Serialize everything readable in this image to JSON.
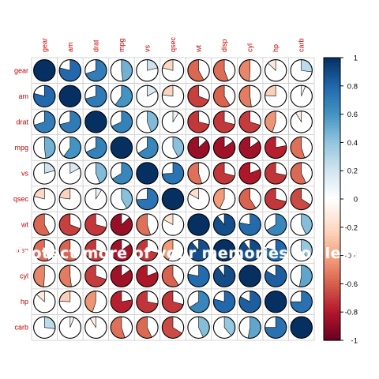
{
  "chart_data": {
    "type": "heatmap",
    "method": "pie",
    "variables": [
      "gear",
      "am",
      "drat",
      "mpg",
      "vs",
      "qsec",
      "wt",
      "disp",
      "cyl",
      "hp",
      "carb"
    ],
    "matrix": [
      [
        1.0,
        0.79,
        0.7,
        0.48,
        0.21,
        -0.21,
        -0.58,
        -0.56,
        -0.49,
        -0.13,
        0.27
      ],
      [
        0.79,
        1.0,
        0.71,
        0.6,
        0.17,
        -0.23,
        -0.69,
        -0.59,
        -0.52,
        -0.24,
        0.06
      ],
      [
        0.7,
        0.71,
        1.0,
        0.68,
        0.44,
        0.09,
        -0.71,
        -0.71,
        -0.7,
        -0.45,
        -0.09
      ],
      [
        0.48,
        0.6,
        0.68,
        1.0,
        0.66,
        0.42,
        -0.87,
        -0.85,
        -0.85,
        -0.78,
        -0.55
      ],
      [
        0.21,
        0.17,
        0.44,
        0.66,
        1.0,
        0.74,
        -0.55,
        -0.71,
        -0.81,
        -0.72,
        -0.57
      ],
      [
        -0.21,
        -0.23,
        0.09,
        0.42,
        0.74,
        1.0,
        -0.17,
        -0.43,
        -0.59,
        -0.71,
        -0.66
      ],
      [
        -0.58,
        -0.69,
        -0.71,
        -0.87,
        -0.55,
        -0.17,
        1.0,
        0.89,
        0.78,
        0.66,
        0.43
      ],
      [
        -0.56,
        -0.59,
        -0.71,
        -0.85,
        -0.71,
        -0.43,
        0.89,
        1.0,
        0.9,
        0.79,
        0.39
      ],
      [
        -0.49,
        -0.52,
        -0.7,
        -0.85,
        -0.81,
        -0.59,
        0.78,
        0.9,
        1.0,
        0.83,
        0.53
      ],
      [
        -0.13,
        -0.24,
        -0.45,
        -0.78,
        -0.72,
        -0.71,
        0.66,
        0.79,
        0.83,
        1.0,
        0.75
      ],
      [
        0.27,
        0.06,
        -0.09,
        -0.55,
        -0.57,
        -0.66,
        0.43,
        0.39,
        0.53,
        0.75,
        1.0
      ]
    ],
    "color_scale": {
      "range": [
        -1,
        1
      ],
      "ticks": [
        1,
        0.8,
        0.6,
        0.4,
        0.2,
        0,
        -0.2,
        -0.4,
        -0.6,
        -0.8,
        -1
      ],
      "colors": {
        "-1": "#67001f",
        "-0.8": "#b2182b",
        "-0.6": "#d6604d",
        "-0.4": "#f4a582",
        "-0.2": "#fddbc7",
        "0": "#ffffff",
        "0.2": "#d1e5f0",
        "0.4": "#92c5de",
        "0.6": "#4393c3",
        "0.8": "#2166ac",
        "1": "#053061"
      }
    },
    "label_color": "#cc0000",
    "grid": true,
    "legend": "right"
  },
  "overlay": {
    "watermark": "Protect more of your memories for less!"
  }
}
